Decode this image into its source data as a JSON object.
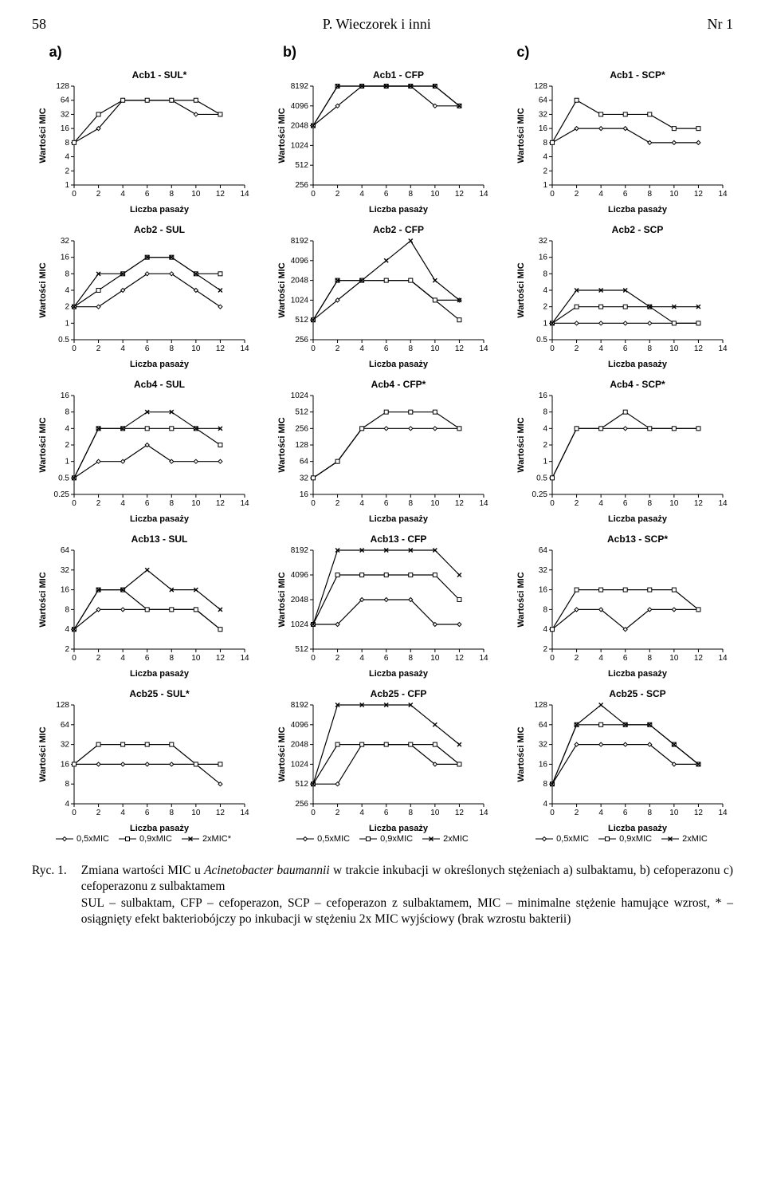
{
  "page": {
    "number_left": "58",
    "center": "P. Wieczorek i inni",
    "number_right": "Nr 1"
  },
  "col_labels": [
    "a)",
    "b)",
    "c)"
  ],
  "axis": {
    "xlabel": "Liczba pasaży",
    "ylabel": "Wartości MIC",
    "xticks": [
      0,
      2,
      4,
      6,
      8,
      10,
      12,
      14
    ],
    "label_fontsize": 11,
    "tick_fontsize": 10,
    "font_family": "Arial, sans-serif"
  },
  "style": {
    "line_color": "#000000",
    "line_width": 1.2,
    "marker_size": 5,
    "marker_stroke": "#000000",
    "marker_fill": "#ffffff",
    "axis_color": "#000000",
    "background": "#ffffff",
    "title_fontsize": 12,
    "title_weight": "700"
  },
  "series_markers": {
    "0.5xMIC": "diamond",
    "0.9xMIC": "square",
    "2xMIC": "x"
  },
  "legend_variants": {
    "last_a": [
      "0,5xMIC",
      "0,9xMIC",
      "2xMIC*"
    ],
    "last_bc": [
      "0,5xMIC",
      "0,9xMIC",
      "2xMIC"
    ]
  },
  "charts": [
    [
      {
        "title": "Acb1 - SUL*",
        "yticks": [
          1,
          2,
          4,
          8,
          16,
          32,
          64,
          128
        ],
        "series": {
          "0.5xMIC": {
            "x": [
              0,
              2,
              4,
              6,
              8,
              10,
              12
            ],
            "y": [
              8,
              16,
              64,
              64,
              64,
              32,
              32
            ]
          },
          "0.9xMIC": {
            "x": [
              0,
              2,
              4,
              6,
              8,
              10,
              12
            ],
            "y": [
              8,
              32,
              64,
              64,
              64,
              64,
              32
            ]
          }
        }
      },
      {
        "title": "Acb1 - CFP",
        "yticks": [
          256,
          512,
          1024,
          2048,
          4096,
          8192
        ],
        "series": {
          "0.5xMIC": {
            "x": [
              0,
              2,
              4,
              6,
              8,
              10,
              12
            ],
            "y": [
              2048,
              4096,
              8192,
              8192,
              8192,
              4096,
              4096
            ]
          },
          "0.9xMIC": {
            "x": [
              0,
              2,
              4,
              6,
              8,
              10,
              12
            ],
            "y": [
              2048,
              8192,
              8192,
              8192,
              8192,
              8192,
              4096
            ]
          },
          "2xMIC": {
            "x": [
              0,
              2,
              4,
              6,
              8,
              10,
              12
            ],
            "y": [
              2048,
              8192,
              8192,
              8192,
              8192,
              8192,
              4096
            ]
          }
        }
      },
      {
        "title": "Acb1 - SCP*",
        "yticks": [
          1,
          2,
          4,
          8,
          16,
          32,
          64,
          128
        ],
        "series": {
          "0.5xMIC": {
            "x": [
              0,
              2,
              4,
              6,
              8,
              10,
              12
            ],
            "y": [
              8,
              16,
              16,
              16,
              8,
              8,
              8
            ]
          },
          "0.9xMIC": {
            "x": [
              0,
              2,
              4,
              6,
              8,
              10,
              12
            ],
            "y": [
              8,
              64,
              32,
              32,
              32,
              16,
              16
            ]
          }
        }
      }
    ],
    [
      {
        "title": "Acb2 - SUL",
        "yticks": [
          0.5,
          1,
          2,
          4,
          8,
          16,
          32
        ],
        "series": {
          "0.5xMIC": {
            "x": [
              0,
              2,
              4,
              6,
              8,
              10,
              12
            ],
            "y": [
              2,
              2,
              4,
              8,
              8,
              4,
              2
            ]
          },
          "0.9xMIC": {
            "x": [
              0,
              2,
              4,
              6,
              8,
              10,
              12
            ],
            "y": [
              2,
              4,
              8,
              16,
              16,
              8,
              8
            ]
          },
          "2xMIC": {
            "x": [
              0,
              2,
              4,
              6,
              8,
              10,
              12
            ],
            "y": [
              2,
              8,
              8,
              16,
              16,
              8,
              4
            ]
          }
        }
      },
      {
        "title": "Acb2 - CFP",
        "yticks": [
          256,
          512,
          1024,
          2048,
          4096,
          8192
        ],
        "series": {
          "0.5xMIC": {
            "x": [
              0,
              2,
              4,
              6,
              8,
              10,
              12
            ],
            "y": [
              512,
              1024,
              2048,
              2048,
              2048,
              1024,
              1024
            ]
          },
          "0.9xMIC": {
            "x": [
              0,
              2,
              4,
              6,
              8,
              10,
              12
            ],
            "y": [
              512,
              2048,
              2048,
              2048,
              2048,
              1024,
              512
            ]
          },
          "2xMIC": {
            "x": [
              0,
              2,
              4,
              6,
              8,
              10,
              12
            ],
            "y": [
              512,
              2048,
              2048,
              4096,
              8192,
              2048,
              1024
            ]
          }
        }
      },
      {
        "title": "Acb2 - SCP",
        "yticks": [
          0.5,
          1,
          2,
          4,
          8,
          16,
          32
        ],
        "series": {
          "0.5xMIC": {
            "x": [
              0,
              2,
              4,
              6,
              8,
              10,
              12
            ],
            "y": [
              1,
              1,
              1,
              1,
              1,
              1,
              1
            ]
          },
          "0.9xMIC": {
            "x": [
              0,
              2,
              4,
              6,
              8,
              10,
              12
            ],
            "y": [
              1,
              2,
              2,
              2,
              2,
              1,
              1
            ]
          },
          "2xMIC": {
            "x": [
              0,
              2,
              4,
              6,
              8,
              10,
              12
            ],
            "y": [
              1,
              4,
              4,
              4,
              2,
              2,
              2
            ]
          }
        }
      }
    ],
    [
      {
        "title": "Acb4 - SUL",
        "yticks": [
          0.25,
          0.5,
          1,
          2,
          4,
          8,
          16
        ],
        "series": {
          "0.5xMIC": {
            "x": [
              0,
              2,
              4,
              6,
              8,
              10,
              12
            ],
            "y": [
              0.5,
              1,
              1,
              2,
              1,
              1,
              1
            ]
          },
          "0.9xMIC": {
            "x": [
              0,
              2,
              4,
              6,
              8,
              10,
              12
            ],
            "y": [
              0.5,
              4,
              4,
              4,
              4,
              4,
              2
            ]
          },
          "2xMIC": {
            "x": [
              0,
              2,
              4,
              6,
              8,
              10,
              12
            ],
            "y": [
              0.5,
              4,
              4,
              8,
              8,
              4,
              4
            ]
          }
        }
      },
      {
        "title": "Acb4 - CFP*",
        "yticks": [
          16,
          32,
          64,
          128,
          256,
          512,
          1024
        ],
        "series": {
          "0.5xMIC": {
            "x": [
              0,
              2,
              4,
              6,
              8,
              10,
              12
            ],
            "y": [
              32,
              64,
              256,
              256,
              256,
              256,
              256
            ]
          },
          "0.9xMIC": {
            "x": [
              0,
              2,
              4,
              6,
              8,
              10,
              12
            ],
            "y": [
              32,
              64,
              256,
              512,
              512,
              512,
              256
            ]
          }
        }
      },
      {
        "title": "Acb4 - SCP*",
        "yticks": [
          0.25,
          0.5,
          1,
          2,
          4,
          8,
          16
        ],
        "series": {
          "0.5xMIC": {
            "x": [
              0,
              2,
              4,
              6,
              8,
              10,
              12
            ],
            "y": [
              0.5,
              4,
              4,
              4,
              4,
              4,
              4
            ]
          },
          "0.9xMIC": {
            "x": [
              0,
              2,
              4,
              6,
              8,
              10,
              12
            ],
            "y": [
              0.5,
              4,
              4,
              8,
              4,
              4,
              4
            ]
          }
        }
      }
    ],
    [
      {
        "title": "Acb13 - SUL",
        "yticks": [
          2,
          4,
          8,
          16,
          32,
          64
        ],
        "series": {
          "0.5xMIC": {
            "x": [
              0,
              2,
              4,
              6,
              8,
              10,
              12
            ],
            "y": [
              4,
              8,
              8,
              8,
              8,
              8,
              4
            ]
          },
          "0.9xMIC": {
            "x": [
              0,
              2,
              4,
              6,
              8,
              10,
              12
            ],
            "y": [
              4,
              16,
              16,
              8,
              8,
              8,
              4
            ]
          },
          "2xMIC": {
            "x": [
              0,
              2,
              4,
              6,
              8,
              10,
              12
            ],
            "y": [
              4,
              16,
              16,
              32,
              16,
              16,
              8
            ]
          }
        }
      },
      {
        "title": "Acb13 - CFP",
        "yticks": [
          512,
          1024,
          2048,
          4096,
          8192
        ],
        "series": {
          "0.5xMIC": {
            "x": [
              0,
              2,
              4,
              6,
              8,
              10,
              12
            ],
            "y": [
              1024,
              1024,
              2048,
              2048,
              2048,
              1024,
              1024
            ]
          },
          "0.9xMIC": {
            "x": [
              0,
              2,
              4,
              6,
              8,
              10,
              12
            ],
            "y": [
              1024,
              4096,
              4096,
              4096,
              4096,
              4096,
              2048
            ]
          },
          "2xMIC": {
            "x": [
              0,
              2,
              4,
              6,
              8,
              10,
              12
            ],
            "y": [
              1024,
              8192,
              8192,
              8192,
              8192,
              8192,
              4096
            ]
          }
        }
      },
      {
        "title": "Acb13 - SCP*",
        "yticks": [
          2,
          4,
          8,
          16,
          32,
          64
        ],
        "series": {
          "0.5xMIC": {
            "x": [
              0,
              2,
              4,
              6,
              8,
              10,
              12
            ],
            "y": [
              4,
              8,
              8,
              4,
              8,
              8,
              8
            ]
          },
          "0.9xMIC": {
            "x": [
              0,
              2,
              4,
              6,
              8,
              10,
              12
            ],
            "y": [
              4,
              16,
              16,
              16,
              16,
              16,
              8
            ]
          }
        }
      }
    ],
    [
      {
        "title": "Acb25 - SUL*",
        "yticks": [
          4,
          8,
          16,
          32,
          64,
          128
        ],
        "series": {
          "0.5xMIC": {
            "x": [
              0,
              2,
              4,
              6,
              8,
              10,
              12
            ],
            "y": [
              16,
              16,
              16,
              16,
              16,
              16,
              8
            ]
          },
          "0.9xMIC": {
            "x": [
              0,
              2,
              4,
              6,
              8,
              10,
              12
            ],
            "y": [
              16,
              32,
              32,
              32,
              32,
              16,
              16
            ]
          }
        }
      },
      {
        "title": "Acb25 - CFP",
        "yticks": [
          256,
          512,
          1024,
          2048,
          4096,
          8192
        ],
        "series": {
          "0.5xMIC": {
            "x": [
              0,
              2,
              4,
              6,
              8,
              10,
              12
            ],
            "y": [
              512,
              512,
              2048,
              2048,
              2048,
              1024,
              1024
            ]
          },
          "0.9xMIC": {
            "x": [
              0,
              2,
              4,
              6,
              8,
              10,
              12
            ],
            "y": [
              512,
              2048,
              2048,
              2048,
              2048,
              2048,
              1024
            ]
          },
          "2xMIC": {
            "x": [
              0,
              2,
              4,
              6,
              8,
              10,
              12
            ],
            "y": [
              512,
              8192,
              8192,
              8192,
              8192,
              4096,
              2048
            ]
          }
        }
      },
      {
        "title": "Acb25 - SCP",
        "yticks": [
          4,
          8,
          16,
          32,
          64,
          128
        ],
        "series": {
          "0.5xMIC": {
            "x": [
              0,
              2,
              4,
              6,
              8,
              10,
              12
            ],
            "y": [
              8,
              32,
              32,
              32,
              32,
              16,
              16
            ]
          },
          "0.9xMIC": {
            "x": [
              0,
              2,
              4,
              6,
              8,
              10,
              12
            ],
            "y": [
              8,
              64,
              64,
              64,
              64,
              32,
              16
            ]
          },
          "2xMIC": {
            "x": [
              0,
              2,
              4,
              6,
              8,
              10,
              12
            ],
            "y": [
              8,
              64,
              128,
              64,
              64,
              32,
              16
            ]
          }
        }
      }
    ]
  ],
  "caption": {
    "label": "Ryc. 1.",
    "body": "Zmiana wartości MIC u Acinetobacter baumannii w trakcie inkubacji w określonych stężeniach a) sulbaktamu, b) cefoperazonu c) cefoperazonu z sulbaktamem\nSUL – sulbaktam, CFP – cefoperazon, SCP – cefoperazon z sulbaktamem, MIC – minimalne stężenie hamujące wzrost, * – osiągnięty efekt bakteriobójczy po inkubacji w stężeniu 2x MIC wyjściowy (brak wzrostu bakterii)",
    "italic_span": "Acinetobacter baumannii"
  }
}
